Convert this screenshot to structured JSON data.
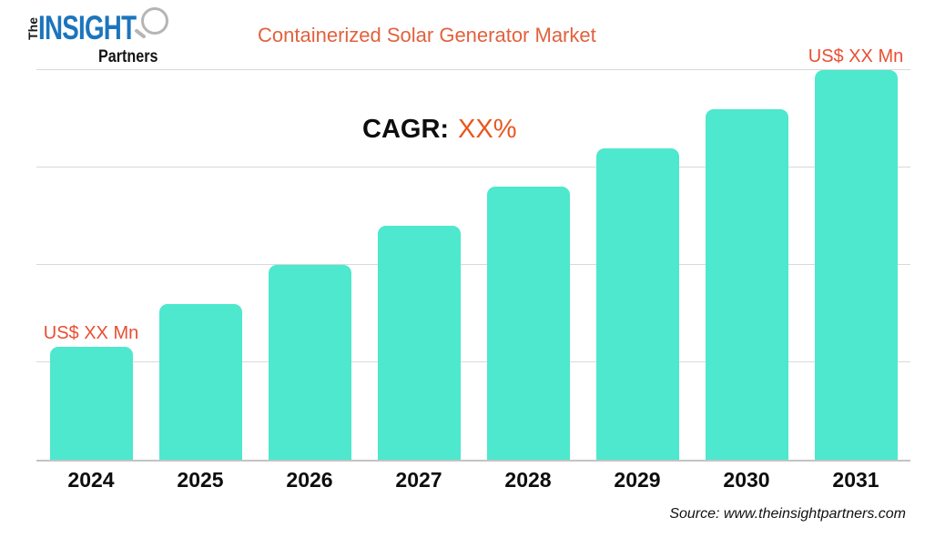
{
  "logo": {
    "the": "The",
    "insight": "INSIGHT",
    "partners": "Partners"
  },
  "title": "Containerized Solar Generator Market",
  "cagr": {
    "label": "CAGR:",
    "value": "XX%"
  },
  "source": "Source: www.theinsightpartners.com",
  "colors": {
    "bar": "#4de8cd",
    "title": "#e2613d",
    "value_label": "#ea4e33",
    "cagr_value": "#e8571f",
    "insight_blue": "#1c75bc",
    "gridline": "#d9d9d9",
    "axis": "#c3c3c3"
  },
  "chart_data": {
    "type": "bar",
    "title": "Containerized Solar Generator Market",
    "categories": [
      "2024",
      "2025",
      "2026",
      "2027",
      "2028",
      "2029",
      "2030",
      "2031"
    ],
    "values": [
      29,
      40,
      50,
      60,
      70,
      80,
      90,
      100
    ],
    "point_labels": [
      "US$ XX Mn",
      "",
      "",
      "",
      "",
      "",
      "",
      "US$ XX Mn"
    ],
    "xlabel": "",
    "ylabel": "",
    "ylim": [
      0,
      104
    ],
    "gridlines": [
      25,
      50,
      75,
      100
    ],
    "grid": true,
    "legend": false,
    "bar_color": "#4de8cd",
    "annotation": "CAGR: XX%"
  }
}
